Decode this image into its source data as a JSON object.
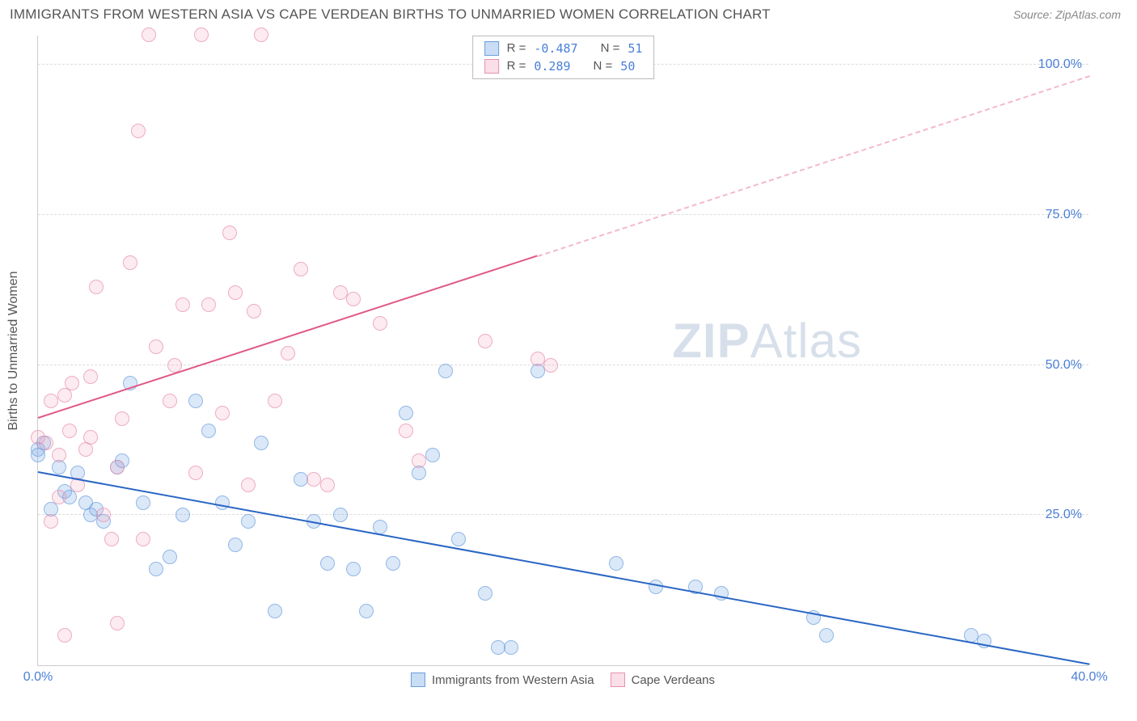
{
  "header": {
    "title": "IMMIGRANTS FROM WESTERN ASIA VS CAPE VERDEAN BIRTHS TO UNMARRIED WOMEN CORRELATION CHART",
    "source": "Source: ZipAtlas.com"
  },
  "watermark": {
    "part1": "ZIP",
    "part2": "Atlas"
  },
  "chart": {
    "type": "scatter",
    "xlim": [
      0,
      40
    ],
    "ylim": [
      0,
      105
    ],
    "x_ticks": [
      {
        "v": 0,
        "label": "0.0%"
      },
      {
        "v": 40,
        "label": "40.0%"
      }
    ],
    "y_ticks": [
      {
        "v": 25,
        "label": "25.0%"
      },
      {
        "v": 50,
        "label": "50.0%"
      },
      {
        "v": 75,
        "label": "75.0%"
      },
      {
        "v": 100,
        "label": "100.0%"
      }
    ],
    "ylabel": "Births to Unmarried Women",
    "grid_color": "#dcdcdc",
    "background_color": "#ffffff",
    "axis_color": "#cccccc",
    "tick_color": "#4a7fd8",
    "marker_radius": 9,
    "series": [
      {
        "name": "Immigrants from Western Asia",
        "color_fill": "rgba(120,170,230,0.35)",
        "color_stroke": "#6b9fde",
        "R": "-0.487",
        "N": "51",
        "trend": {
          "x1": 0,
          "y1": 32,
          "x2": 40,
          "y2": 0,
          "color": "#2a66c4",
          "width": 2.5,
          "dash": false
        },
        "points": [
          [
            0.0,
            36
          ],
          [
            0.0,
            35
          ],
          [
            0.2,
            37
          ],
          [
            0.5,
            26
          ],
          [
            0.8,
            33
          ],
          [
            1.0,
            29
          ],
          [
            1.2,
            28
          ],
          [
            1.5,
            32
          ],
          [
            1.8,
            27
          ],
          [
            2.0,
            25
          ],
          [
            2.2,
            26
          ],
          [
            2.5,
            24
          ],
          [
            3.0,
            33
          ],
          [
            3.2,
            34
          ],
          [
            3.5,
            47
          ],
          [
            4.0,
            27
          ],
          [
            4.5,
            16
          ],
          [
            5.0,
            18
          ],
          [
            5.5,
            25
          ],
          [
            6.0,
            44
          ],
          [
            6.5,
            39
          ],
          [
            7.0,
            27
          ],
          [
            7.5,
            20
          ],
          [
            8.0,
            24
          ],
          [
            8.5,
            37
          ],
          [
            9.0,
            9
          ],
          [
            10.0,
            31
          ],
          [
            10.5,
            24
          ],
          [
            11.0,
            17
          ],
          [
            11.5,
            25
          ],
          [
            12.0,
            16
          ],
          [
            12.5,
            9
          ],
          [
            13.0,
            23
          ],
          [
            13.5,
            17
          ],
          [
            14.0,
            42
          ],
          [
            14.5,
            32
          ],
          [
            15.0,
            35
          ],
          [
            15.5,
            49
          ],
          [
            16.0,
            21
          ],
          [
            17.0,
            12
          ],
          [
            17.5,
            3
          ],
          [
            18.0,
            3
          ],
          [
            19.0,
            49
          ],
          [
            22.0,
            17
          ],
          [
            23.5,
            13
          ],
          [
            25.0,
            13
          ],
          [
            26.0,
            12
          ],
          [
            29.5,
            8
          ],
          [
            30.0,
            5
          ],
          [
            35.5,
            5
          ],
          [
            36.0,
            4
          ]
        ]
      },
      {
        "name": "Cape Verdeans",
        "color_fill": "rgba(240,150,180,0.25)",
        "color_stroke": "#e890b0",
        "R": "0.289",
        "N": "50",
        "trend_solid": {
          "x1": 0,
          "y1": 41,
          "x2": 19,
          "y2": 68,
          "color": "#e05a8a",
          "width": 2,
          "dash": false
        },
        "trend_dashed": {
          "x1": 19,
          "y1": 68,
          "x2": 40,
          "y2": 98,
          "color": "#f4b8cc",
          "width": 2,
          "dash": true
        },
        "points": [
          [
            0.0,
            38
          ],
          [
            0.3,
            37
          ],
          [
            0.5,
            24
          ],
          [
            0.8,
            35
          ],
          [
            1.0,
            45
          ],
          [
            1.2,
            39
          ],
          [
            1.3,
            47
          ],
          [
            1.5,
            30
          ],
          [
            1.8,
            36
          ],
          [
            2.0,
            48
          ],
          [
            2.2,
            63
          ],
          [
            2.5,
            25
          ],
          [
            2.8,
            21
          ],
          [
            3.0,
            33
          ],
          [
            3.2,
            41
          ],
          [
            3.5,
            67
          ],
          [
            3.8,
            89
          ],
          [
            4.0,
            21
          ],
          [
            4.2,
            105
          ],
          [
            4.5,
            53
          ],
          [
            5.0,
            44
          ],
          [
            5.2,
            50
          ],
          [
            5.5,
            60
          ],
          [
            6.0,
            32
          ],
          [
            6.2,
            105
          ],
          [
            6.5,
            60
          ],
          [
            7.0,
            42
          ],
          [
            7.3,
            72
          ],
          [
            7.5,
            62
          ],
          [
            8.0,
            30
          ],
          [
            8.2,
            59
          ],
          [
            8.5,
            105
          ],
          [
            9.0,
            44
          ],
          [
            9.5,
            52
          ],
          [
            10.0,
            66
          ],
          [
            10.5,
            31
          ],
          [
            11.0,
            30
          ],
          [
            11.5,
            62
          ],
          [
            12.0,
            61
          ],
          [
            13.0,
            57
          ],
          [
            14.0,
            39
          ],
          [
            14.5,
            34
          ],
          [
            17.0,
            54
          ],
          [
            19.0,
            51
          ],
          [
            19.5,
            50
          ],
          [
            3.0,
            7
          ],
          [
            1.0,
            5
          ],
          [
            0.5,
            44
          ],
          [
            2.0,
            38
          ],
          [
            0.8,
            28
          ]
        ]
      }
    ],
    "legend_top": {
      "rows": [
        {
          "swatch": "blue",
          "r_label": "R =",
          "r_val": "-0.487",
          "n_label": "N =",
          "n_val": "51"
        },
        {
          "swatch": "pink",
          "r_label": "R =",
          "r_val": " 0.289",
          "n_label": "N =",
          "n_val": "50"
        }
      ]
    },
    "legend_bottom": {
      "items": [
        {
          "swatch": "blue",
          "label": "Immigrants from Western Asia"
        },
        {
          "swatch": "pink",
          "label": "Cape Verdeans"
        }
      ]
    }
  }
}
